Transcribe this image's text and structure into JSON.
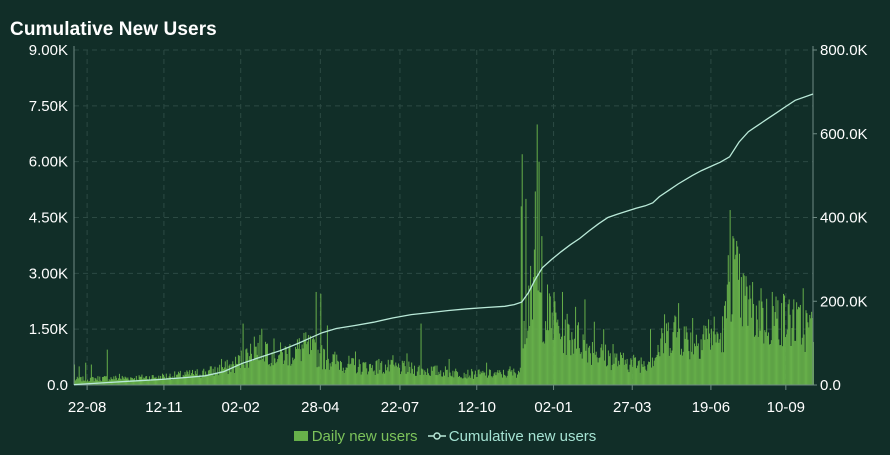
{
  "chart_data": {
    "type": "bar+line",
    "title": "Cumulative New Users",
    "x_tick_labels": [
      "22-08",
      "12-11",
      "02-02",
      "28-04",
      "22-07",
      "12-10",
      "02-01",
      "27-03",
      "19-06",
      "10-09"
    ],
    "x_tick_positions": [
      14,
      96,
      178,
      263,
      348,
      430,
      512,
      596,
      680,
      760
    ],
    "x_range": [
      0,
      789
    ],
    "left_axis": {
      "ticks": [
        "0.0",
        "1.50K",
        "3.00K",
        "4.50K",
        "6.00K",
        "7.50K",
        "9.00K"
      ],
      "ylim": [
        0,
        9000
      ]
    },
    "right_axis": {
      "ticks": [
        "0.0",
        "200.0K",
        "400.0K",
        "600.0K",
        "800.0K"
      ],
      "ylim": [
        0,
        800000
      ]
    },
    "grid": true,
    "legend_position": "bottom",
    "series": [
      {
        "name": "Daily new users",
        "kind": "bar",
        "axis": "left",
        "daily_level_points": [
          [
            0,
            150
          ],
          [
            30,
            180
          ],
          [
            60,
            190
          ],
          [
            90,
            220
          ],
          [
            120,
            280
          ],
          [
            150,
            380
          ],
          [
            170,
            520
          ],
          [
            180,
            720
          ],
          [
            190,
            900
          ],
          [
            200,
            1050
          ],
          [
            210,
            900
          ],
          [
            220,
            800
          ],
          [
            230,
            850
          ],
          [
            240,
            950
          ],
          [
            250,
            1000
          ],
          [
            260,
            800
          ],
          [
            270,
            700
          ],
          [
            285,
            600
          ],
          [
            300,
            500
          ],
          [
            320,
            480
          ],
          [
            340,
            470
          ],
          [
            360,
            430
          ],
          [
            380,
            380
          ],
          [
            400,
            350
          ],
          [
            420,
            300
          ],
          [
            440,
            290
          ],
          [
            460,
            300
          ],
          [
            470,
            330
          ],
          [
            476,
            400
          ],
          [
            477,
            1400
          ],
          [
            480,
            1900
          ],
          [
            485,
            2200
          ],
          [
            490,
            2600
          ],
          [
            495,
            2300
          ],
          [
            500,
            2000
          ],
          [
            510,
            1700
          ],
          [
            520,
            1500
          ],
          [
            530,
            1300
          ],
          [
            540,
            1200
          ],
          [
            550,
            1000
          ],
          [
            560,
            850
          ],
          [
            570,
            750
          ],
          [
            580,
            650
          ],
          [
            590,
            600
          ],
          [
            600,
            580
          ],
          [
            610,
            620
          ],
          [
            620,
            800
          ],
          [
            630,
            1200
          ],
          [
            640,
            1500
          ],
          [
            650,
            1300
          ],
          [
            660,
            1100
          ],
          [
            670,
            1300
          ],
          [
            680,
            1400
          ],
          [
            690,
            1200
          ],
          [
            695,
            1700
          ],
          [
            700,
            3100
          ],
          [
            705,
            3000
          ],
          [
            710,
            2500
          ],
          [
            720,
            2100
          ],
          [
            730,
            1800
          ],
          [
            740,
            1700
          ],
          [
            750,
            1800
          ],
          [
            760,
            1750
          ],
          [
            770,
            1600
          ],
          [
            789,
            1500
          ]
        ],
        "spikes": [
          [
            0,
            550
          ],
          [
            5,
            500
          ],
          [
            12,
            600
          ],
          [
            18,
            550
          ],
          [
            35,
            950
          ],
          [
            48,
            300
          ],
          [
            90,
            250
          ],
          [
            130,
            300
          ],
          [
            157,
            700
          ],
          [
            180,
            1650
          ],
          [
            192,
            1300
          ],
          [
            205,
            1100
          ],
          [
            230,
            1100
          ],
          [
            245,
            1400
          ],
          [
            258,
            2500
          ],
          [
            263,
            2450
          ],
          [
            270,
            1600
          ],
          [
            300,
            900
          ],
          [
            325,
            700
          ],
          [
            340,
            800
          ],
          [
            355,
            850
          ],
          [
            370,
            1650
          ],
          [
            400,
            700
          ],
          [
            440,
            600
          ],
          [
            465,
            500
          ],
          [
            477,
            4800
          ],
          [
            478,
            6200
          ],
          [
            482,
            5000
          ],
          [
            487,
            3200
          ],
          [
            492,
            5200
          ],
          [
            494,
            7000
          ],
          [
            496,
            6000
          ],
          [
            499,
            4000
          ],
          [
            505,
            2700
          ],
          [
            512,
            2500
          ],
          [
            521,
            2500
          ],
          [
            535,
            2100
          ],
          [
            545,
            2300
          ],
          [
            555,
            1700
          ],
          [
            565,
            1500
          ],
          [
            575,
            1100
          ],
          [
            590,
            700
          ],
          [
            615,
            1500
          ],
          [
            630,
            1900
          ],
          [
            645,
            2200
          ],
          [
            660,
            1800
          ],
          [
            672,
            1600
          ],
          [
            690,
            1400
          ],
          [
            700,
            4700
          ],
          [
            703,
            4000
          ],
          [
            706,
            3500
          ],
          [
            712,
            2900
          ],
          [
            720,
            2300
          ],
          [
            733,
            2600
          ],
          [
            745,
            2500
          ],
          [
            755,
            2200
          ],
          [
            768,
            2300
          ],
          [
            778,
            2600
          ],
          [
            788,
            1800
          ]
        ],
        "color": "#67b04a"
      },
      {
        "name": "Cumulative new users",
        "kind": "line",
        "axis": "right",
        "points": [
          [
            0,
            1000
          ],
          [
            30,
            5000
          ],
          [
            60,
            9000
          ],
          [
            90,
            13000
          ],
          [
            120,
            18000
          ],
          [
            140,
            22000
          ],
          [
            160,
            32000
          ],
          [
            180,
            52000
          ],
          [
            200,
            67000
          ],
          [
            220,
            82000
          ],
          [
            240,
            100000
          ],
          [
            255,
            115000
          ],
          [
            265,
            125000
          ],
          [
            280,
            135000
          ],
          [
            300,
            142000
          ],
          [
            320,
            150000
          ],
          [
            340,
            160000
          ],
          [
            360,
            168000
          ],
          [
            380,
            173000
          ],
          [
            400,
            178000
          ],
          [
            420,
            182000
          ],
          [
            440,
            185000
          ],
          [
            460,
            188000
          ],
          [
            470,
            192000
          ],
          [
            478,
            198000
          ],
          [
            485,
            220000
          ],
          [
            492,
            250000
          ],
          [
            500,
            280000
          ],
          [
            510,
            300000
          ],
          [
            520,
            318000
          ],
          [
            530,
            335000
          ],
          [
            540,
            350000
          ],
          [
            550,
            368000
          ],
          [
            560,
            385000
          ],
          [
            570,
            400000
          ],
          [
            580,
            408000
          ],
          [
            590,
            415000
          ],
          [
            600,
            422000
          ],
          [
            610,
            428000
          ],
          [
            618,
            435000
          ],
          [
            625,
            450000
          ],
          [
            635,
            465000
          ],
          [
            645,
            480000
          ],
          [
            660,
            500000
          ],
          [
            670,
            512000
          ],
          [
            680,
            522000
          ],
          [
            690,
            532000
          ],
          [
            700,
            545000
          ],
          [
            710,
            580000
          ],
          [
            720,
            605000
          ],
          [
            730,
            620000
          ],
          [
            740,
            635000
          ],
          [
            750,
            650000
          ],
          [
            760,
            665000
          ],
          [
            770,
            680000
          ],
          [
            789,
            695000
          ]
        ],
        "color": "#b9e9d8"
      }
    ]
  },
  "colors": {
    "background": "#112e28",
    "grid": "#2c4a43",
    "axis_line": "#6f8b84",
    "bar": "#67b04a",
    "line": "#b9e9d8",
    "text": "#ffffff",
    "legend_bar_text": "#7cc35b",
    "legend_line_text": "#a5e3d3"
  }
}
